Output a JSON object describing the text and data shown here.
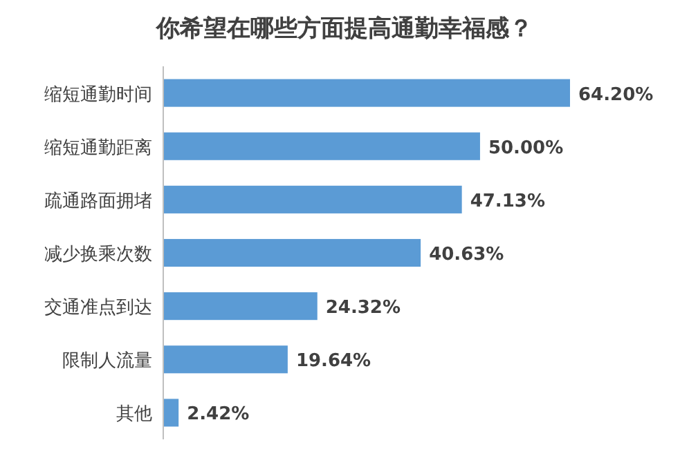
{
  "chart_data": {
    "type": "bar",
    "orientation": "horizontal",
    "title": "你希望在哪些方面提高通勤幸福感？",
    "categories": [
      "缩短通勤时间",
      "缩短通勤距离",
      "疏通路面拥堵",
      "减少换乘次数",
      "交通准点到达",
      "限制人流量",
      "其他"
    ],
    "values": [
      64.2,
      50.0,
      47.13,
      40.63,
      24.32,
      19.64,
      2.42
    ],
    "value_labels": [
      "64.20%",
      "50.00%",
      "47.13%",
      "40.63%",
      "24.32%",
      "19.64%",
      "2.42%"
    ],
    "color": "#5b9bd5"
  }
}
